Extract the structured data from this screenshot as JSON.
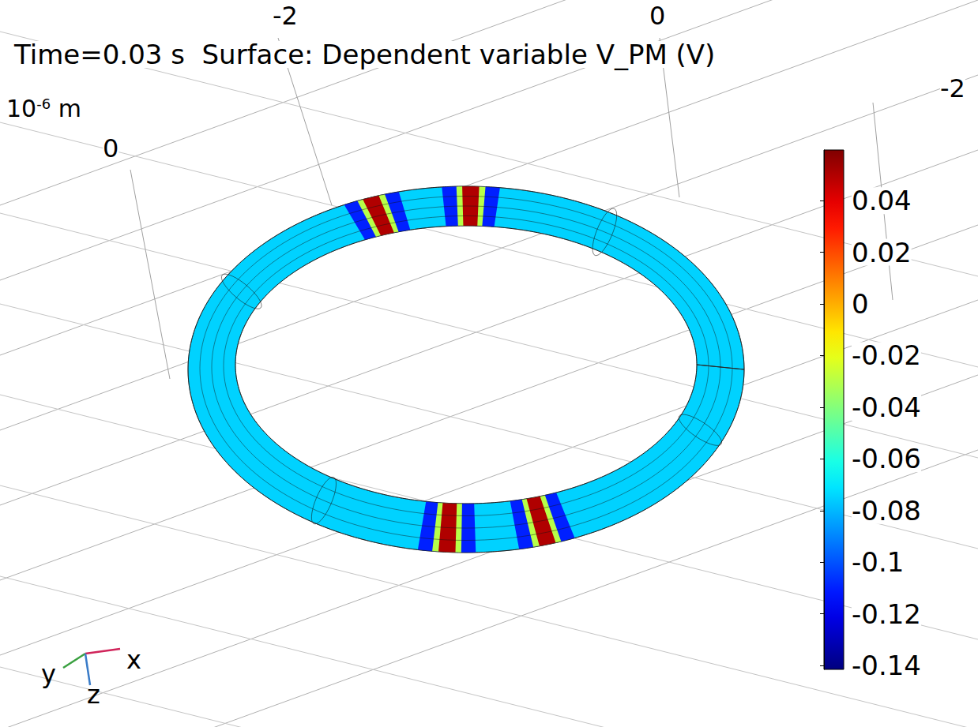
{
  "chart_data": {
    "type": "surface",
    "title": "Time=0.03 s  Surface: Dependent variable V_PM (V)",
    "box_ticks": [
      -2,
      0,
      -2,
      0
    ],
    "length_unit": {
      "base": "10",
      "exponent": "-6",
      "unit": "m"
    },
    "triad": [
      "x",
      "y",
      "z"
    ],
    "colorbar": {
      "lim": [
        -0.1415,
        0.0596
      ],
      "ticks": [
        0.04,
        0.02,
        0,
        -0.02,
        -0.04,
        -0.06,
        -0.08,
        -0.1,
        -0.12,
        -0.14
      ]
    },
    "surface_values": {
      "base": -0.075,
      "peak": 0.05,
      "trough": -0.11
    }
  }
}
